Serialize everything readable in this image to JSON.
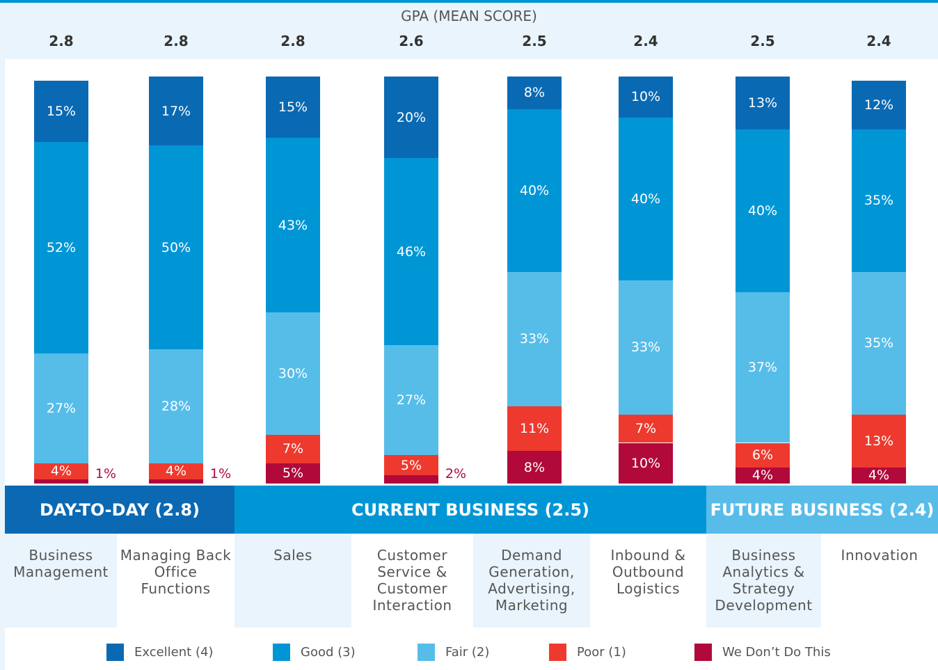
{
  "chart_data": {
    "type": "stacked_bar",
    "gpa_title": "GPA (MEAN SCORE)",
    "gpa": [
      2.8,
      2.8,
      2.8,
      2.6,
      2.5,
      2.4,
      2.5,
      2.4
    ],
    "categories": [
      "Business Management",
      "Managing Back Office Functions",
      "Sales",
      "Customer Service & Customer Interaction",
      "Demand Generation, Advertising, Marketing",
      "Inbound & Outbound Logistics",
      "Business Analytics & Strategy Development",
      "Innovation"
    ],
    "groups": [
      {
        "name": "DAY-TO-DAY (2.8)",
        "count": 2,
        "color": "#0b68b2"
      },
      {
        "name": "CURRENT BUSINESS (2.5)",
        "count": 4,
        "color": "#0096d6"
      },
      {
        "name": "FUTURE BUSINESS (2.4)",
        "count": 2,
        "color": "#58bce9"
      }
    ],
    "ylim": [
      0,
      100
    ],
    "series": [
      {
        "name": "We Don’t Do This",
        "color": "#b0093a",
        "values": [
          1,
          1,
          5,
          2,
          8,
          10,
          4,
          4
        ],
        "value_labels": [
          "1%",
          "1%",
          "5%",
          "2%",
          "8%",
          "10%",
          "4%",
          "4%"
        ]
      },
      {
        "name": "Poor (1)",
        "color": "#ee3a2e",
        "values": [
          4,
          4,
          7,
          5,
          11,
          7,
          6,
          13
        ],
        "value_labels": [
          "4%",
          "4%",
          "7%",
          "5%",
          "11%",
          "7%",
          "6%",
          "13%"
        ]
      },
      {
        "name": "Fair (2)",
        "color": "#56bde9",
        "values": [
          27,
          28,
          30,
          27,
          33,
          33,
          37,
          35
        ],
        "value_labels": [
          "27%",
          "28%",
          "30%",
          "27%",
          "33%",
          "33%",
          "37%",
          "35%"
        ]
      },
      {
        "name": "Good (3)",
        "color": "#0096d6",
        "values": [
          52,
          50,
          43,
          46,
          40,
          40,
          40,
          35
        ],
        "value_labels": [
          "52%",
          "50%",
          "43%",
          "46%",
          "40%",
          "40%",
          "40%",
          "35%"
        ]
      },
      {
        "name": "Excellent (4)",
        "color": "#0a69b3",
        "values": [
          15,
          17,
          15,
          20,
          8,
          10,
          13,
          12
        ],
        "value_labels": [
          "15%",
          "17%",
          "15%",
          "20%",
          "8%",
          "10%",
          "13%",
          "12%"
        ]
      }
    ]
  }
}
